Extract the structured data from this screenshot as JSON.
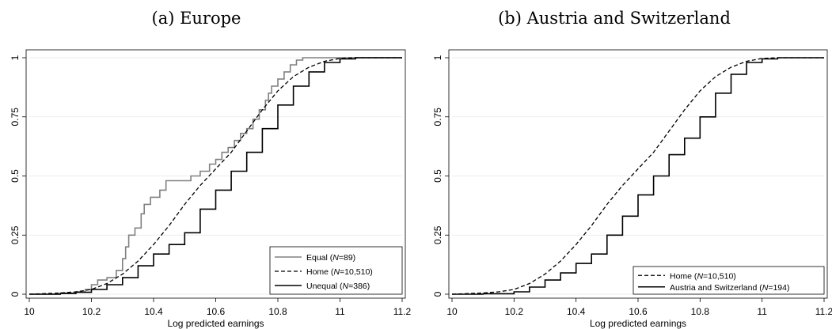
{
  "chart_data": [
    {
      "type": "line",
      "title": "(a) Europe",
      "xlabel": "Log predicted earnings",
      "ylabel": "",
      "xlim": [
        10,
        11.2
      ],
      "ylim": [
        0,
        1
      ],
      "xticks": [
        "10",
        "10.2",
        "10.4",
        "10.6",
        "10.8",
        "11",
        "11.2"
      ],
      "yticks": [
        "0",
        "0.25",
        "0.5",
        "0.75",
        "1"
      ],
      "grid": "horizontal",
      "legend_position": "bottom-right",
      "series": [
        {
          "name": "Equal (N=89)",
          "legend_text": "Equal (",
          "legend_n_label": "N",
          "legend_n_value": "=89)",
          "color": "#808080",
          "style": "solid",
          "step": true,
          "points": [
            [
              10.0,
              0
            ],
            [
              10.1,
              0.005
            ],
            [
              10.15,
              0.01
            ],
            [
              10.18,
              0.02
            ],
            [
              10.2,
              0.04
            ],
            [
              10.22,
              0.06
            ],
            [
              10.25,
              0.07
            ],
            [
              10.28,
              0.1
            ],
            [
              10.3,
              0.15
            ],
            [
              10.31,
              0.2
            ],
            [
              10.32,
              0.25
            ],
            [
              10.34,
              0.28
            ],
            [
              10.36,
              0.34
            ],
            [
              10.37,
              0.38
            ],
            [
              10.39,
              0.41
            ],
            [
              10.42,
              0.44
            ],
            [
              10.44,
              0.48
            ],
            [
              10.5,
              0.48
            ],
            [
              10.52,
              0.5
            ],
            [
              10.55,
              0.52
            ],
            [
              10.58,
              0.55
            ],
            [
              10.6,
              0.57
            ],
            [
              10.62,
              0.6
            ],
            [
              10.64,
              0.62
            ],
            [
              10.66,
              0.65
            ],
            [
              10.68,
              0.68
            ],
            [
              10.7,
              0.7
            ],
            [
              10.72,
              0.74
            ],
            [
              10.74,
              0.78
            ],
            [
              10.76,
              0.82
            ],
            [
              10.77,
              0.85
            ],
            [
              10.78,
              0.88
            ],
            [
              10.8,
              0.91
            ],
            [
              10.82,
              0.94
            ],
            [
              10.84,
              0.97
            ],
            [
              10.86,
              0.99
            ],
            [
              10.88,
              1.0
            ],
            [
              11.2,
              1.0
            ]
          ]
        },
        {
          "name": "Home (N=10,510)",
          "legend_text": "Home (",
          "legend_n_label": "N",
          "legend_n_value": "=10,510)",
          "color": "#000000",
          "style": "dashed",
          "step": false,
          "points": [
            [
              10.0,
              0
            ],
            [
              10.1,
              0.005
            ],
            [
              10.15,
              0.01
            ],
            [
              10.2,
              0.02
            ],
            [
              10.25,
              0.045
            ],
            [
              10.3,
              0.085
            ],
            [
              10.35,
              0.14
            ],
            [
              10.4,
              0.21
            ],
            [
              10.45,
              0.29
            ],
            [
              10.5,
              0.38
            ],
            [
              10.55,
              0.46
            ],
            [
              10.6,
              0.53
            ],
            [
              10.65,
              0.6
            ],
            [
              10.7,
              0.69
            ],
            [
              10.75,
              0.78
            ],
            [
              10.8,
              0.86
            ],
            [
              10.85,
              0.92
            ],
            [
              10.9,
              0.96
            ],
            [
              10.95,
              0.985
            ],
            [
              11.0,
              0.997
            ],
            [
              11.05,
              1.0
            ],
            [
              11.2,
              1.0
            ]
          ]
        },
        {
          "name": "Unequal (N=386)",
          "legend_text": "Unequal (",
          "legend_n_label": "N",
          "legend_n_value": "=386)",
          "color": "#000000",
          "style": "solid",
          "step": true,
          "points": [
            [
              10.0,
              0
            ],
            [
              10.1,
              0.003
            ],
            [
              10.15,
              0.008
            ],
            [
              10.2,
              0.02
            ],
            [
              10.25,
              0.04
            ],
            [
              10.3,
              0.07
            ],
            [
              10.35,
              0.12
            ],
            [
              10.4,
              0.17
            ],
            [
              10.45,
              0.21
            ],
            [
              10.5,
              0.26
            ],
            [
              10.55,
              0.36
            ],
            [
              10.6,
              0.44
            ],
            [
              10.65,
              0.52
            ],
            [
              10.7,
              0.6
            ],
            [
              10.75,
              0.7
            ],
            [
              10.8,
              0.8
            ],
            [
              10.85,
              0.88
            ],
            [
              10.9,
              0.94
            ],
            [
              10.95,
              0.98
            ],
            [
              11.0,
              0.995
            ],
            [
              11.05,
              1.0
            ],
            [
              11.2,
              1.0
            ]
          ]
        }
      ]
    },
    {
      "type": "line",
      "title": "(b) Austria and Switzerland",
      "xlabel": "Log predicted earnings",
      "ylabel": "",
      "xlim": [
        10,
        11.2
      ],
      "ylim": [
        0,
        1
      ],
      "xticks": [
        "10",
        "10.2",
        "10.4",
        "10.6",
        "10.8",
        "11",
        "11.2"
      ],
      "yticks": [
        "0",
        "0.25",
        "0.5",
        "0.75",
        "1"
      ],
      "grid": "horizontal",
      "legend_position": "bottom-right",
      "series": [
        {
          "name": "Home (N=10,510)",
          "legend_text": "Home (",
          "legend_n_label": "N",
          "legend_n_value": "=10,510)",
          "color": "#000000",
          "style": "dashed",
          "step": false,
          "points": [
            [
              10.0,
              0
            ],
            [
              10.1,
              0.005
            ],
            [
              10.15,
              0.01
            ],
            [
              10.2,
              0.02
            ],
            [
              10.25,
              0.045
            ],
            [
              10.3,
              0.085
            ],
            [
              10.35,
              0.14
            ],
            [
              10.4,
              0.21
            ],
            [
              10.45,
              0.29
            ],
            [
              10.5,
              0.38
            ],
            [
              10.55,
              0.46
            ],
            [
              10.6,
              0.53
            ],
            [
              10.65,
              0.6
            ],
            [
              10.7,
              0.69
            ],
            [
              10.75,
              0.78
            ],
            [
              10.8,
              0.86
            ],
            [
              10.85,
              0.92
            ],
            [
              10.9,
              0.96
            ],
            [
              10.95,
              0.985
            ],
            [
              11.0,
              0.997
            ],
            [
              11.05,
              1.0
            ],
            [
              11.2,
              1.0
            ]
          ]
        },
        {
          "name": "Austria and Switzerland (N=194)",
          "legend_text": "Austria and Switzerland (",
          "legend_n_label": "N",
          "legend_n_value": "=194)",
          "color": "#000000",
          "style": "solid",
          "step": true,
          "points": [
            [
              10.0,
              0
            ],
            [
              10.1,
              0.002
            ],
            [
              10.2,
              0.01
            ],
            [
              10.25,
              0.03
            ],
            [
              10.3,
              0.06
            ],
            [
              10.35,
              0.09
            ],
            [
              10.4,
              0.13
            ],
            [
              10.45,
              0.17
            ],
            [
              10.5,
              0.25
            ],
            [
              10.55,
              0.33
            ],
            [
              10.6,
              0.42
            ],
            [
              10.65,
              0.5
            ],
            [
              10.7,
              0.59
            ],
            [
              10.75,
              0.66
            ],
            [
              10.8,
              0.75
            ],
            [
              10.85,
              0.85
            ],
            [
              10.9,
              0.93
            ],
            [
              10.95,
              0.98
            ],
            [
              11.0,
              0.995
            ],
            [
              11.05,
              1.0
            ],
            [
              11.2,
              1.0
            ]
          ]
        }
      ]
    }
  ]
}
